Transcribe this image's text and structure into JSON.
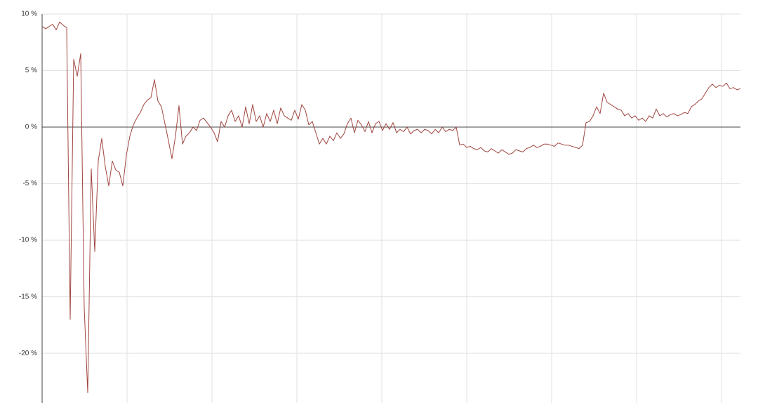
{
  "chart_data": {
    "type": "line",
    "ylim": [
      -24.4,
      10
    ],
    "yticks": [
      {
        "value": 10,
        "label": "10 %"
      },
      {
        "value": 5,
        "label": "5 %"
      },
      {
        "value": 0,
        "label": "0 %"
      },
      {
        "value": -5,
        "label": "-5 %"
      },
      {
        "value": -10,
        "label": "-10 %"
      },
      {
        "value": -15,
        "label": "-15 %"
      },
      {
        "value": -20,
        "label": "-20 %"
      }
    ],
    "grid": true,
    "color": "#a0453f",
    "values": [
      8.9,
      8.7,
      8.9,
      9.1,
      8.6,
      9.3,
      9.0,
      8.8,
      -17,
      6,
      4.5,
      6.5,
      -16,
      -23.5,
      -3.7,
      -11,
      -3,
      -1,
      -3.5,
      -5.2,
      -3,
      -3.8,
      -4,
      -5.2,
      -2.5,
      -0.8,
      0.2,
      0.8,
      1.3,
      2,
      2.4,
      2.6,
      4.2,
      2.3,
      1.8,
      0.3,
      -1.2,
      -2.8,
      -0.8,
      1.9,
      -1.5,
      -0.8,
      -0.5,
      0,
      -0.3,
      0.6,
      0.8,
      0.4,
      0,
      -0.5,
      -1.3,
      0.5,
      0,
      1,
      1.5,
      0.5,
      1,
      0,
      1.8,
      0.3,
      2,
      0.5,
      1,
      0,
      1.2,
      0.5,
      1.5,
      0.3,
      1.7,
      1,
      0.8,
      0.6,
      1.5,
      0.7,
      2,
      1.5,
      0.2,
      0.5,
      -0.5,
      -1.5,
      -1,
      -1.5,
      -0.8,
      -1.2,
      -0.5,
      -1,
      -0.6,
      0.3,
      0.8,
      -0.5,
      0.6,
      0.2,
      -0.4,
      0.5,
      -0.5,
      0.3,
      0.5,
      -0.3,
      0.3,
      -0.2,
      0.4,
      -0.5,
      -0.2,
      -0.4,
      0,
      -0.6,
      -0.3,
      -0.2,
      -0.5,
      -0.2,
      -0.3,
      -0.6,
      -0.2,
      -0.5,
      0,
      -0.4,
      -0.2,
      -0.3,
      0,
      -1.6,
      -1.5,
      -1.8,
      -1.7,
      -1.9,
      -2,
      -1.8,
      -2.1,
      -2.2,
      -1.9,
      -2.1,
      -2.3,
      -2,
      -2.2,
      -2.4,
      -2.3,
      -2,
      -2.1,
      -2.2,
      -1.9,
      -1.8,
      -1.6,
      -1.8,
      -1.7,
      -1.5,
      -1.5,
      -1.6,
      -1.7,
      -1.4,
      -1.5,
      -1.6,
      -1.6,
      -1.7,
      -1.8,
      -1.9,
      -1.6,
      0.4,
      0.5,
      1,
      1.8,
      1.2,
      3,
      2.2,
      2,
      1.8,
      1.6,
      1.5,
      1,
      1.2,
      0.8,
      1,
      0.6,
      0.8,
      0.5,
      1,
      0.8,
      1.6,
      1,
      1.2,
      0.9,
      1.1,
      1.2,
      1,
      1.1,
      1.3,
      1.2,
      1.8,
      2,
      2.3,
      2.5,
      3,
      3.5,
      3.8,
      3.5,
      3.7,
      3.6,
      3.9,
      3.4,
      3.5,
      3.3,
      3.4
    ]
  }
}
